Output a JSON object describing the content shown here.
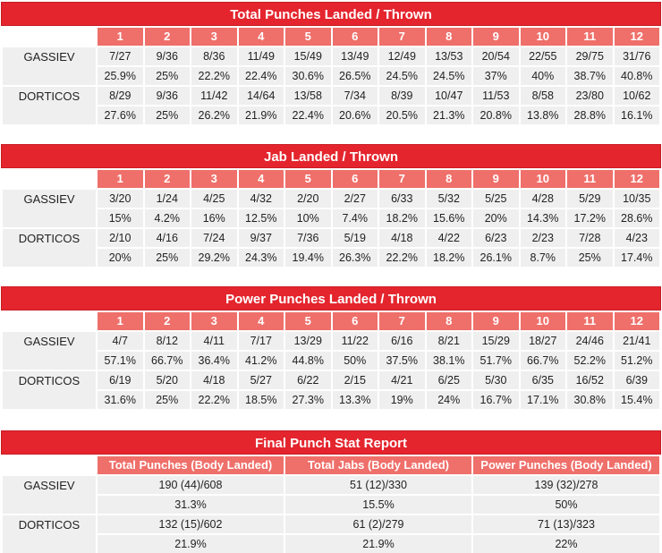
{
  "total": {
    "title": "Total Punches Landed / Thrown",
    "rounds": [
      "1",
      "2",
      "3",
      "4",
      "5",
      "6",
      "7",
      "8",
      "9",
      "10",
      "11",
      "12"
    ],
    "fighters": [
      {
        "name": "GASSIEV",
        "landed": [
          "7/27",
          "9/36",
          "8/36",
          "11/49",
          "15/49",
          "13/49",
          "12/49",
          "13/53",
          "20/54",
          "22/55",
          "29/75",
          "31/76"
        ],
        "pct": [
          "25.9%",
          "25%",
          "22.2%",
          "22.4%",
          "30.6%",
          "26.5%",
          "24.5%",
          "24.5%",
          "37%",
          "40%",
          "38.7%",
          "40.8%"
        ]
      },
      {
        "name": "DORTICOS",
        "landed": [
          "8/29",
          "9/36",
          "11/42",
          "14/64",
          "13/58",
          "7/34",
          "8/39",
          "10/47",
          "11/53",
          "8/58",
          "23/80",
          "10/62"
        ],
        "pct": [
          "27.6%",
          "25%",
          "26.2%",
          "21.9%",
          "22.4%",
          "20.6%",
          "20.5%",
          "21.3%",
          "20.8%",
          "13.8%",
          "28.8%",
          "16.1%"
        ]
      }
    ]
  },
  "jab": {
    "title": "Jab Landed / Thrown",
    "rounds": [
      "1",
      "2",
      "3",
      "4",
      "5",
      "6",
      "7",
      "8",
      "9",
      "10",
      "11",
      "12"
    ],
    "fighters": [
      {
        "name": "GASSIEV",
        "landed": [
          "3/20",
          "1/24",
          "4/25",
          "4/32",
          "2/20",
          "2/27",
          "6/33",
          "5/32",
          "5/25",
          "4/28",
          "5/29",
          "10/35"
        ],
        "pct": [
          "15%",
          "4.2%",
          "16%",
          "12.5%",
          "10%",
          "7.4%",
          "18.2%",
          "15.6%",
          "20%",
          "14.3%",
          "17.2%",
          "28.6%"
        ]
      },
      {
        "name": "DORTICOS",
        "landed": [
          "2/10",
          "4/16",
          "7/24",
          "9/37",
          "7/36",
          "5/19",
          "4/18",
          "4/22",
          "6/23",
          "2/23",
          "7/28",
          "4/23"
        ],
        "pct": [
          "20%",
          "25%",
          "29.2%",
          "24.3%",
          "19.4%",
          "26.3%",
          "22.2%",
          "18.2%",
          "26.1%",
          "8.7%",
          "25%",
          "17.4%"
        ]
      }
    ]
  },
  "power": {
    "title": "Power Punches Landed / Thrown",
    "rounds": [
      "1",
      "2",
      "3",
      "4",
      "5",
      "6",
      "7",
      "8",
      "9",
      "10",
      "11",
      "12"
    ],
    "fighters": [
      {
        "name": "GASSIEV",
        "landed": [
          "4/7",
          "8/12",
          "4/11",
          "7/17",
          "13/29",
          "11/22",
          "6/16",
          "8/21",
          "15/29",
          "18/27",
          "24/46",
          "21/41"
        ],
        "pct": [
          "57.1%",
          "66.7%",
          "36.4%",
          "41.2%",
          "44.8%",
          "50%",
          "37.5%",
          "38.1%",
          "51.7%",
          "66.7%",
          "52.2%",
          "51.2%"
        ]
      },
      {
        "name": "DORTICOS",
        "landed": [
          "6/19",
          "5/20",
          "4/18",
          "5/27",
          "6/22",
          "2/15",
          "4/21",
          "6/25",
          "5/30",
          "6/35",
          "16/52",
          "6/39"
        ],
        "pct": [
          "31.6%",
          "25%",
          "22.2%",
          "18.5%",
          "27.3%",
          "13.3%",
          "19%",
          "24%",
          "16.7%",
          "17.1%",
          "30.8%",
          "15.4%"
        ]
      }
    ]
  },
  "final": {
    "title": "Final Punch Stat Report",
    "columns": [
      "Total Punches (Body Landed)",
      "Total Jabs (Body Landed)",
      "Power Punches (Body Landed)"
    ],
    "fighters": [
      {
        "name": "GASSIEV",
        "values": [
          "190 (44)/608",
          "51 (12)/330",
          "139 (32)/278"
        ],
        "pct": [
          "31.3%",
          "15.5%",
          "50%"
        ]
      },
      {
        "name": "DORTICOS",
        "values": [
          "132 (15)/602",
          "61 (2)/279",
          "71 (13)/323"
        ],
        "pct": [
          "21.9%",
          "21.9%",
          "22%"
        ]
      }
    ]
  }
}
